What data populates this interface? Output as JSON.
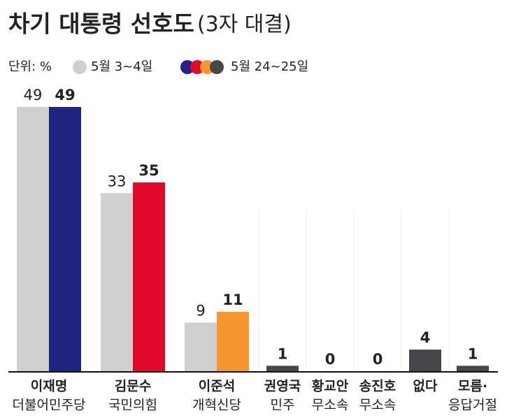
{
  "chart_data": {
    "type": "bar",
    "title": "차기 대통령 선호도",
    "title_note": "(3자 대결)",
    "unit": "단위: %",
    "categories": [
      [
        "이재명",
        "더불어민주당"
      ],
      [
        "김문수",
        "국민의힘"
      ],
      [
        "이준석",
        "개혁신당"
      ],
      [
        "권영국",
        "민주"
      ],
      [
        "황교안",
        "무소속"
      ],
      [
        "송진호",
        "무소속"
      ],
      [
        "없다"
      ],
      [
        "모름·",
        "응답거절"
      ]
    ],
    "series": [
      {
        "name": "5월 3~4일",
        "color": "#cfcfcf",
        "values": [
          49,
          33,
          9,
          null,
          null,
          null,
          null,
          null
        ]
      },
      {
        "name": "5월 24~25일",
        "color": "#1f2580",
        "colors": [
          "#1f2580",
          "#e0092a",
          "#f7962e",
          "#45474b",
          "#45474b",
          "#45474b",
          "#45474b",
          "#45474b"
        ],
        "values": [
          49,
          35,
          11,
          1,
          0,
          0,
          4,
          1
        ]
      }
    ]
  }
}
